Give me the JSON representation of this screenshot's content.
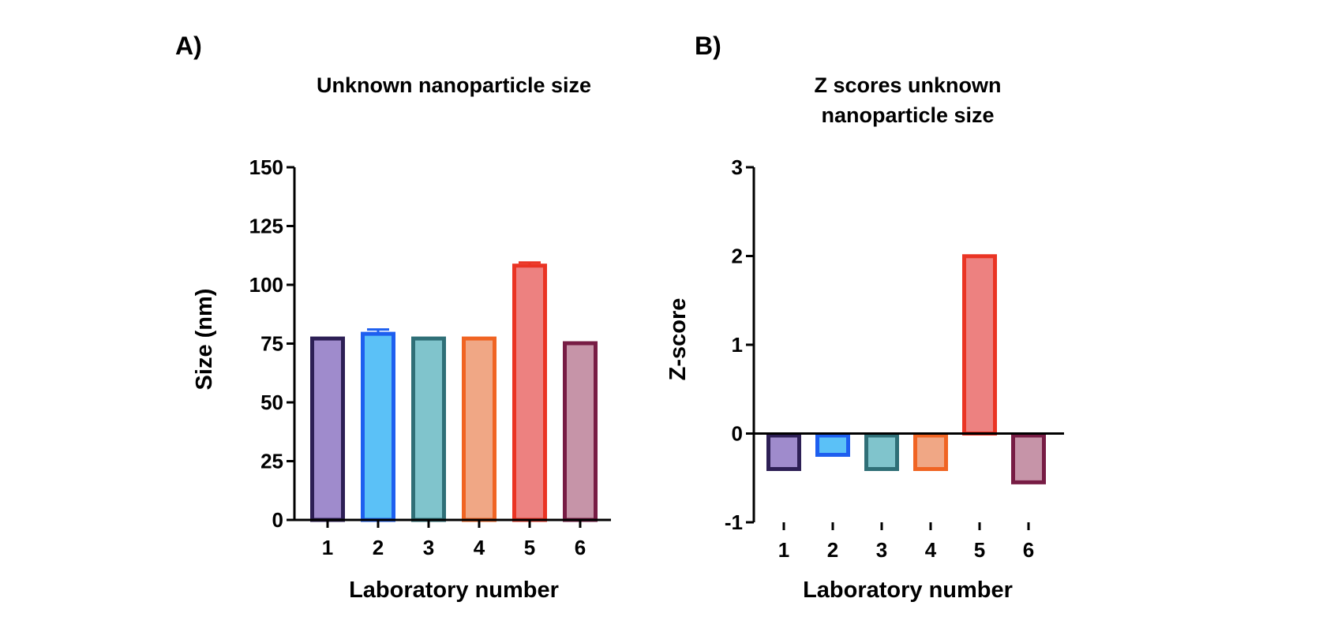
{
  "chart_data": [
    {
      "panel": "A)",
      "type": "bar",
      "title": "Unknown nanoparticle size",
      "xlabel": "Laboratory number",
      "ylabel": "Size (nm)",
      "categories": [
        "1",
        "2",
        "3",
        "4",
        "5",
        "6"
      ],
      "values": [
        78,
        80,
        78,
        78,
        109,
        76
      ],
      "error": [
        0,
        1,
        0,
        0,
        0.5,
        0
      ],
      "ylim": [
        0,
        150
      ],
      "yticks": [
        0,
        25,
        50,
        75,
        100,
        125,
        150
      ],
      "grid": false
    },
    {
      "panel": "B)",
      "type": "bar",
      "title_lines": [
        "Z scores unknown",
        "nanoparticle size"
      ],
      "xlabel": "Laboratory number",
      "ylabel": "Z-score",
      "categories": [
        "1",
        "2",
        "3",
        "4",
        "5",
        "6"
      ],
      "values": [
        -0.4,
        -0.24,
        -0.4,
        -0.4,
        2.02,
        -0.55
      ],
      "ylim": [
        -1,
        3
      ],
      "yticks": [
        -1,
        0,
        1,
        2,
        3
      ],
      "grid": false
    }
  ],
  "colors": {
    "fills": [
      "#9f8bcc",
      "#5bc1f7",
      "#80c4cc",
      "#f0a785",
      "#ed8180",
      "#c694a8"
    ],
    "strokes": [
      "#2d1f55",
      "#1e5fef",
      "#2f6f77",
      "#f06423",
      "#ea3424",
      "#771c44"
    ]
  }
}
